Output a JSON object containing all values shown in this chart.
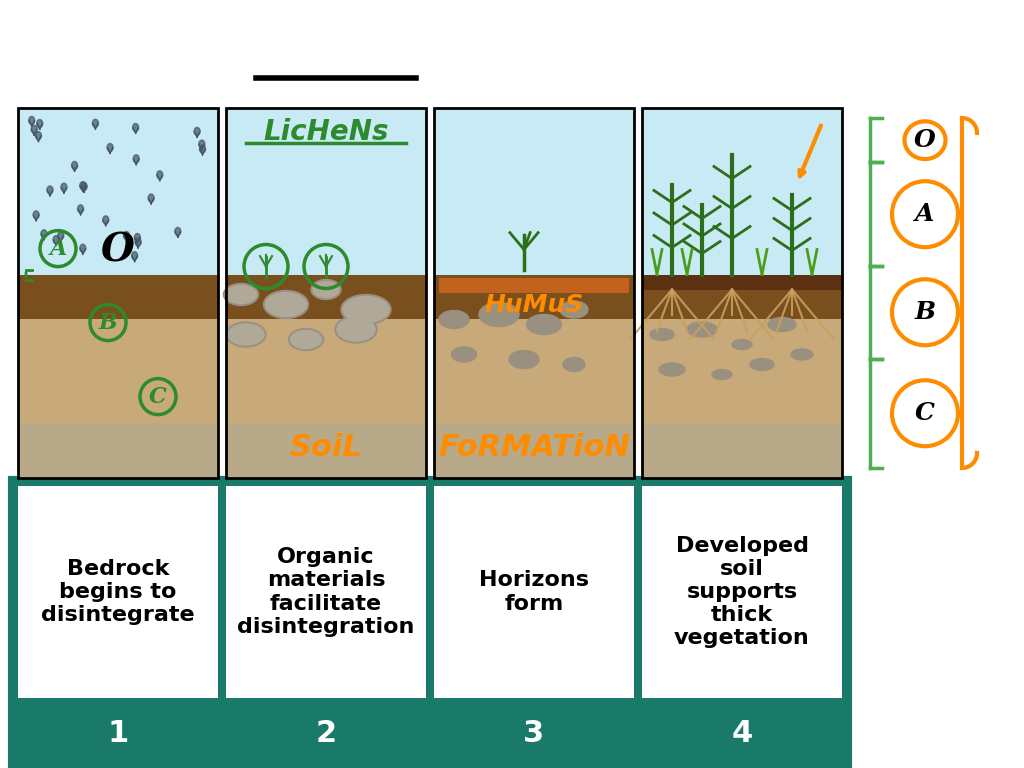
{
  "bg_color": "#ffffff",
  "teal_color": "#1a7a6a",
  "panel_descriptions": [
    "Bedrock\nbegins to\ndisintegrate",
    "Organic\nmaterials\nfacilitate\ndisintegration",
    "Horizons\nform",
    "Developed\nsoil\nsupports\nthick\nvegetation"
  ],
  "panel_numbers": [
    "1",
    "2",
    "3",
    "4"
  ],
  "horizon_labels": [
    "O",
    "A",
    "B",
    "C"
  ],
  "orange_color": "#FF8C00",
  "green_color": "#4CAF50",
  "dark_green": "#2d8a2d",
  "sky_blue": "#c8eaf5",
  "soil_tan": "#c8a97a",
  "soil_dark": "#8B6914",
  "rock_gray": "#a8a090",
  "bottom_soil": "#b8aa88"
}
